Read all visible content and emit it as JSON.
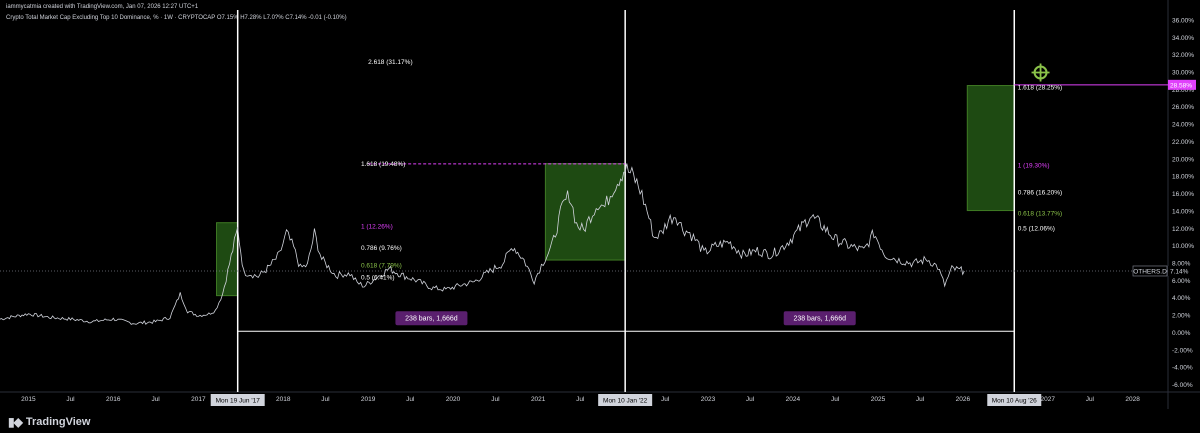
{
  "header": {
    "line1": "iammycatmia created with TradingView.com, Jan 07, 2026 12:27 UTC+1",
    "line2": "Crypto Total Market Cap Excluding Top 10 Dominance, % · 1W · CRYPTOCAP  O7.15%  H7.28%  L7.0?%  C7.14%  -0.01 (-0.10%)"
  },
  "footer": {
    "brand": "TradingView"
  },
  "colors": {
    "background": "#000000",
    "price": "#d1d4dc",
    "zone_fill": "#1e4a12",
    "zone_border": "#3f7a24",
    "magenta": "#e040fb",
    "green": "#8bc34a",
    "ruler_fill": "#5a1f6e",
    "text": "#d1d4dc"
  },
  "chart_data": {
    "type": "line",
    "symbol": "OTHERS.D",
    "y_unit": "%",
    "ylim": [
      -6.8,
      37.2
    ],
    "xlim": [
      "2014-09-01",
      "2028-06-01"
    ],
    "y_ticks": [
      "36.00%",
      "34.00%",
      "32.00%",
      "30.00%",
      "28.00%",
      "26.00%",
      "24.00%",
      "22.00%",
      "20.00%",
      "18.00%",
      "16.00%",
      "14.00%",
      "12.00%",
      "10.00%",
      "8.00%",
      "6.00%",
      "4.00%",
      "2.00%",
      "0.00%",
      "-2.00%",
      "-4.00%",
      "-6.00%"
    ],
    "y_tick_values": [
      36,
      34,
      32,
      30,
      28,
      26,
      24,
      22,
      20,
      18,
      16,
      14,
      12,
      10,
      8,
      6,
      4,
      2,
      0,
      -2,
      -4,
      -6
    ],
    "x_ticks": [
      {
        "label": "2015",
        "date": "2015-01-01"
      },
      {
        "label": "Jul",
        "date": "2015-07-01"
      },
      {
        "label": "2016",
        "date": "2016-01-01"
      },
      {
        "label": "Jul",
        "date": "2016-07-01"
      },
      {
        "label": "2017",
        "date": "2017-01-01"
      },
      {
        "label": "2018",
        "date": "2018-01-01"
      },
      {
        "label": "Jul",
        "date": "2018-07-01"
      },
      {
        "label": "2019",
        "date": "2019-01-01"
      },
      {
        "label": "Jul",
        "date": "2019-07-01"
      },
      {
        "label": "2020",
        "date": "2020-01-01"
      },
      {
        "label": "Jul",
        "date": "2020-07-01"
      },
      {
        "label": "2021",
        "date": "2021-01-01"
      },
      {
        "label": "Jul",
        "date": "2021-07-01"
      },
      {
        "label": "Jul",
        "date": "2022-07-01"
      },
      {
        "label": "2023",
        "date": "2023-01-01"
      },
      {
        "label": "Jul",
        "date": "2023-07-01"
      },
      {
        "label": "2024",
        "date": "2024-01-01"
      },
      {
        "label": "Jul",
        "date": "2024-07-01"
      },
      {
        "label": "2025",
        "date": "2025-01-01"
      },
      {
        "label": "Jul",
        "date": "2025-07-01"
      },
      {
        "label": "2026",
        "date": "2026-01-01"
      },
      {
        "label": "2027",
        "date": "2027-01-01"
      },
      {
        "label": "Jul",
        "date": "2027-07-01"
      },
      {
        "label": "2028",
        "date": "2028-01-01"
      }
    ],
    "x_highlight_labels": [
      {
        "label": "Mon 19 Jun '17",
        "date": "2017-06-19"
      },
      {
        "label": "Mon 10 Jan '22",
        "date": "2022-01-10"
      },
      {
        "label": "Mon 10 Aug '26",
        "date": "2026-08-10"
      }
    ],
    "vertical_lines": [
      "2017-06-19",
      "2022-01-10",
      "2026-08-10"
    ],
    "ruler_baseline_value": 0.2,
    "rulers": [
      {
        "label": "238 bars, 1,666d",
        "from": "2017-06-19",
        "to": "2022-01-10"
      },
      {
        "label": "238 bars, 1,666d",
        "from": "2022-01-10",
        "to": "2026-08-10"
      }
    ],
    "price_points": [
      [
        "2014-09-01",
        1.6
      ],
      [
        "2014-11-01",
        1.9
      ],
      [
        "2015-01-01",
        2.2
      ],
      [
        "2015-04-01",
        1.8
      ],
      [
        "2015-07-01",
        1.6
      ],
      [
        "2015-10-01",
        1.3
      ],
      [
        "2016-01-01",
        1.6
      ],
      [
        "2016-04-01",
        1.1
      ],
      [
        "2016-07-01",
        1.3
      ],
      [
        "2016-09-01",
        1.8
      ],
      [
        "2016-10-15",
        4.5
      ],
      [
        "2016-11-15",
        2.5
      ],
      [
        "2017-01-01",
        2.0
      ],
      [
        "2017-02-15",
        2.2
      ],
      [
        "2017-03-15",
        2.6
      ],
      [
        "2017-04-15",
        4.5
      ],
      [
        "2017-05-15",
        8.0
      ],
      [
        "2017-06-19",
        12.0
      ],
      [
        "2017-07-15",
        7.0
      ],
      [
        "2017-08-15",
        6.8
      ],
      [
        "2017-09-15",
        6.5
      ],
      [
        "2017-11-01",
        7.6
      ],
      [
        "2017-12-15",
        9.0
      ],
      [
        "2018-01-15",
        11.5
      ],
      [
        "2018-02-15",
        9.8
      ],
      [
        "2018-03-15",
        7.5
      ],
      [
        "2018-04-15",
        7.8
      ],
      [
        "2018-05-15",
        11.5
      ],
      [
        "2018-06-15",
        8.5
      ],
      [
        "2018-07-15",
        7.6
      ],
      [
        "2018-08-15",
        6.6
      ],
      [
        "2018-09-15",
        6.8
      ],
      [
        "2018-10-15",
        6.8
      ],
      [
        "2018-11-15",
        5.8
      ],
      [
        "2018-12-15",
        5.4
      ],
      [
        "2019-02-01",
        6.3
      ],
      [
        "2019-04-01",
        7.4
      ],
      [
        "2019-06-01",
        6.6
      ],
      [
        "2019-08-01",
        6.0
      ],
      [
        "2019-10-01",
        5.2
      ],
      [
        "2019-12-01",
        5.0
      ],
      [
        "2020-02-01",
        5.5
      ],
      [
        "2020-04-01",
        5.9
      ],
      [
        "2020-06-01",
        7.0
      ],
      [
        "2020-08-01",
        8.0
      ],
      [
        "2020-09-15",
        10.0
      ],
      [
        "2020-11-01",
        8.4
      ],
      [
        "2020-12-15",
        6.0
      ],
      [
        "2021-01-15",
        7.8
      ],
      [
        "2021-03-01",
        10.0
      ],
      [
        "2021-04-15",
        14.5
      ],
      [
        "2021-05-15",
        16.0
      ],
      [
        "2021-06-15",
        12.5
      ],
      [
        "2021-07-15",
        11.8
      ],
      [
        "2021-08-15",
        13.5
      ],
      [
        "2021-09-15",
        15.0
      ],
      [
        "2021-10-15",
        14.5
      ],
      [
        "2021-11-15",
        16.5
      ],
      [
        "2021-12-15",
        17.8
      ],
      [
        "2022-01-10",
        19.0
      ],
      [
        "2022-02-15",
        18.0
      ],
      [
        "2022-03-15",
        16.5
      ],
      [
        "2022-04-15",
        14.0
      ],
      [
        "2022-05-15",
        11.0
      ],
      [
        "2022-06-15",
        11.5
      ],
      [
        "2022-07-15",
        13.0
      ],
      [
        "2022-08-15",
        13.6
      ],
      [
        "2022-09-15",
        12.0
      ],
      [
        "2022-10-15",
        11.5
      ],
      [
        "2022-11-15",
        10.5
      ],
      [
        "2022-12-15",
        9.2
      ],
      [
        "2023-02-01",
        10.0
      ],
      [
        "2023-04-01",
        10.5
      ],
      [
        "2023-06-01",
        9.0
      ],
      [
        "2023-08-01",
        9.5
      ],
      [
        "2023-10-01",
        9.0
      ],
      [
        "2023-12-01",
        10.2
      ],
      [
        "2024-02-01",
        12.0
      ],
      [
        "2024-03-15",
        13.5
      ],
      [
        "2024-05-01",
        12.5
      ],
      [
        "2024-07-01",
        10.8
      ],
      [
        "2024-09-01",
        10.0
      ],
      [
        "2024-11-01",
        9.5
      ],
      [
        "2024-12-15",
        11.5
      ],
      [
        "2025-02-01",
        9.0
      ],
      [
        "2025-04-01",
        8.4
      ],
      [
        "2025-06-01",
        8.0
      ],
      [
        "2025-08-01",
        8.5
      ],
      [
        "2025-09-15",
        7.6
      ],
      [
        "2025-10-15",
        5.5
      ],
      [
        "2025-11-15",
        7.4
      ],
      [
        "2026-01-07",
        7.14
      ]
    ],
    "zones": [
      {
        "from": "2017-03-20",
        "to": "2017-06-19",
        "low": 4.3,
        "high": 12.7
      },
      {
        "from": "2021-02-01",
        "to": "2022-01-10",
        "low": 8.4,
        "high": 19.5
      },
      {
        "from": "2026-01-20",
        "to": "2026-08-10",
        "low": 14.1,
        "high": 28.5
      }
    ],
    "fib_labels": [
      {
        "text": "2.618 (31.17%)",
        "date": "2019-01-01",
        "value": 31.2,
        "color": "#ffffff"
      },
      {
        "text": "1.618 (19.48%)",
        "date": "2018-12-01",
        "value": 19.48,
        "color": "#ffffff"
      },
      {
        "text": "1 (12.26%)",
        "date": "2018-12-01",
        "value": 12.26,
        "color": "#e040fb"
      },
      {
        "text": "0.786 (9.76%)",
        "date": "2018-12-01",
        "value": 9.76,
        "color": "#ffffff"
      },
      {
        "text": "0.618 (7.79%)",
        "date": "2018-12-01",
        "value": 7.79,
        "color": "#8bc34a"
      },
      {
        "text": "0.5 (6.41%)",
        "date": "2018-12-01",
        "value": 6.41,
        "color": "#ffffff"
      },
      {
        "text": "1.618 (28.25%)",
        "date": "2026-08-25",
        "value": 28.25,
        "color": "#ffffff"
      },
      {
        "text": "1 (19.30%)",
        "date": "2026-08-25",
        "value": 19.3,
        "color": "#e040fb"
      },
      {
        "text": "0.786 (16.20%)",
        "date": "2026-08-25",
        "value": 16.2,
        "color": "#ffffff"
      },
      {
        "text": "0.618 (13.77%)",
        "date": "2026-08-25",
        "value": 13.77,
        "color": "#8bc34a"
      },
      {
        "text": "0.5 (12.06%)",
        "date": "2026-08-25",
        "value": 12.06,
        "color": "#ffffff"
      }
    ],
    "dashed_line": {
      "from": "2019-01-01",
      "to": "2022-01-10",
      "value": 19.48
    },
    "target_line": {
      "from": "2026-08-10",
      "to": "2028-06-01",
      "value": 28.58
    },
    "target_marker": {
      "date": "2026-12-01",
      "value": 30.0
    },
    "current_line_value": 7.14,
    "last_price_label": "7.14%",
    "symbol_label": "OTHERS.D",
    "target_badge": "28.58%"
  }
}
